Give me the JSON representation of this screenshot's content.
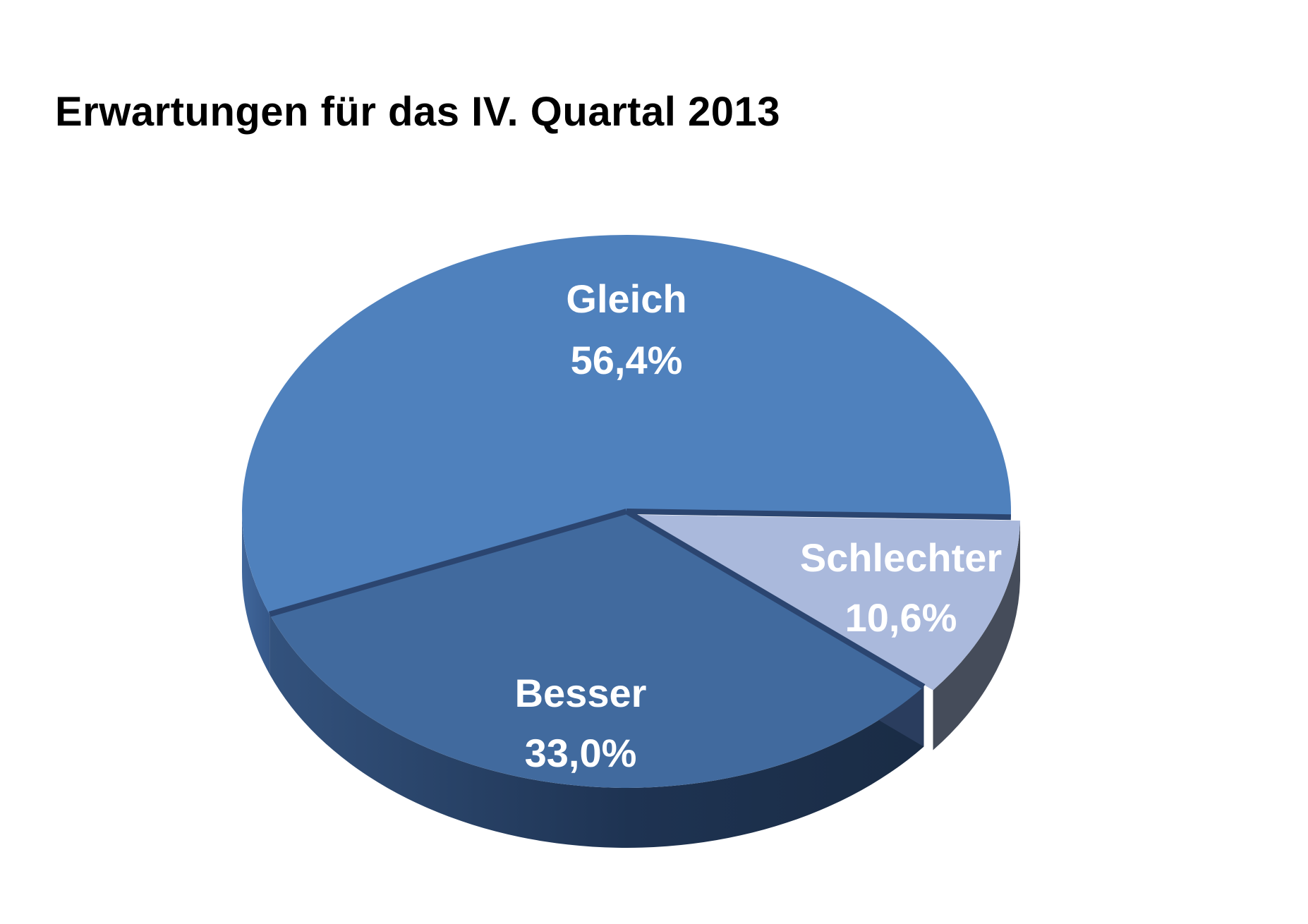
{
  "chart_data": {
    "type": "pie",
    "title": "Erwartungen für das IV. Quartal 2013",
    "slices": [
      {
        "label": "Gleich",
        "value": 56.4,
        "value_label": "56,4%",
        "color": "#4F81BD"
      },
      {
        "label": "Schlechter",
        "value": 10.6,
        "value_label": "10,6%",
        "color": "#AAB9DC"
      },
      {
        "label": "Besser",
        "value": 33.0,
        "value_label": "33,0%",
        "color": "#416A9E"
      }
    ],
    "style": "3d",
    "exploded_slice": "Schlechter"
  }
}
